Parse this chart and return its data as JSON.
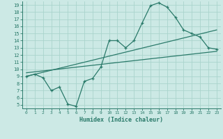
{
  "xlabel": "Humidex (Indice chaleur)",
  "xlim": [
    -0.5,
    23.5
  ],
  "ylim": [
    4.5,
    19.5
  ],
  "xticks": [
    0,
    1,
    2,
    3,
    4,
    5,
    6,
    7,
    8,
    9,
    10,
    11,
    12,
    13,
    14,
    15,
    16,
    17,
    18,
    19,
    20,
    21,
    22,
    23
  ],
  "yticks": [
    5,
    6,
    7,
    8,
    9,
    10,
    11,
    12,
    13,
    14,
    15,
    16,
    17,
    18,
    19
  ],
  "background_color": "#cce9e5",
  "line_color": "#2a7a6a",
  "grid_color": "#aad4cc",
  "line1_x": [
    0,
    1,
    2,
    3,
    4,
    5,
    6,
    7,
    8,
    9,
    10,
    11,
    12,
    13,
    14,
    15,
    16,
    17,
    18,
    19,
    20,
    21,
    22,
    23
  ],
  "line1_y": [
    9.0,
    9.3,
    8.8,
    7.0,
    7.5,
    5.1,
    4.8,
    8.3,
    8.7,
    10.3,
    14.0,
    14.0,
    13.0,
    14.0,
    16.5,
    18.9,
    19.3,
    18.7,
    17.3,
    15.5,
    15.0,
    14.5,
    13.0,
    12.8
  ],
  "line2_x": [
    0,
    23
  ],
  "line2_y": [
    9.0,
    15.5
  ],
  "line3_x": [
    0,
    23
  ],
  "line3_y": [
    9.5,
    12.5
  ]
}
